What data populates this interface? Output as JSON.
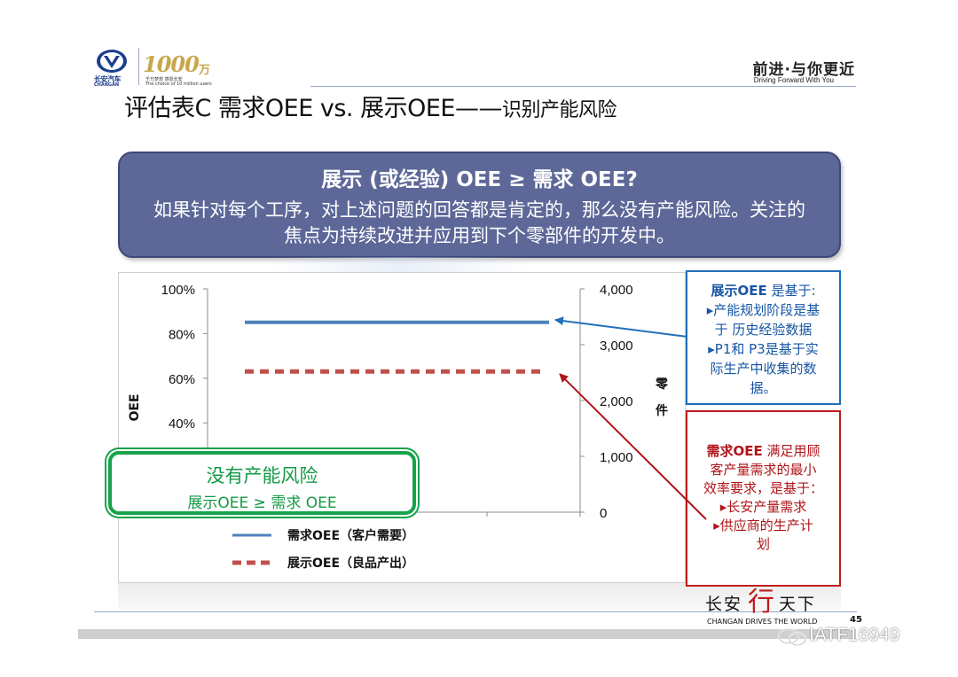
{
  "header": {
    "logo_cn": "长安汽车",
    "logo_en": "CHANGAN",
    "anniv_number": "1000",
    "anniv_unit": "万",
    "anniv_sub_cn": "千万梦想 感恩长安",
    "anniv_sub_en": "The choice of 10 million users",
    "slogan_cn": "前进·与你更近",
    "slogan_en": "Driving Forward With You"
  },
  "title": {
    "main": "评估表C 需求OEE vs. 展示OEE——",
    "suffix": "识别产能风险"
  },
  "callout": {
    "question": "展示 (或经验) OEE ≥ 需求 OEE?",
    "body": "如果针对每个工序，对上述问题的回答都是肯定的，那么没有产能风险。关注的焦点为持续改进并应用到下个零部件的开发中。"
  },
  "chart_data": {
    "type": "line",
    "ylabel": "OEE",
    "y2label": "零件",
    "left_ticks": [
      "100%",
      "80%",
      "60%",
      "40%"
    ],
    "right_ticks": [
      "4,000",
      "3,000",
      "2,000",
      "1,000",
      "0"
    ],
    "ylim": [
      0,
      100
    ],
    "y2lim": [
      0,
      4000
    ],
    "grid": false,
    "legend_position": "bottom",
    "series": [
      {
        "name": "需求OEE（客户需要）",
        "values": [
          85,
          85
        ],
        "style": "solid",
        "color": "#4f81bd"
      },
      {
        "name": "展示OEE（良品产出）",
        "values": [
          63,
          63
        ],
        "style": "dashed",
        "color": "#c0504d"
      }
    ]
  },
  "no_risk_box": {
    "title": "没有产能风险",
    "subtitle": "展示OEE ≥ 需求 OEE"
  },
  "note_blue": {
    "heading_bold": "展示OEE",
    "heading_rest": " 是基于:",
    "lines": [
      "▸产能规划阶段是基",
      "于 历史经验数据",
      "▸P1和 P3是基于实",
      "际生产中收集的数",
      "据。"
    ]
  },
  "note_red": {
    "heading_bold": "需求OEE",
    "heading_rest": " 满足用顾",
    "lines": [
      "客产量需求的最小",
      "效率要求，是基于：",
      "▸长安产量需求",
      "▸供应商的生产计",
      "划"
    ]
  },
  "footer": {
    "brand_left": "长安",
    "brand_red": "行",
    "brand_right": "天下",
    "brand_en": "CHANGAN DRIVES THE WORLD",
    "page_number": "45",
    "watermark": "IATF16949"
  },
  "colors": {
    "callout_bg": "#5d6898",
    "demand_line": "#4f81bd",
    "shown_line": "#c0504d",
    "no_risk": "#16a34a",
    "note_blue": "#1f6fb8",
    "note_red": "#c01c1c"
  }
}
